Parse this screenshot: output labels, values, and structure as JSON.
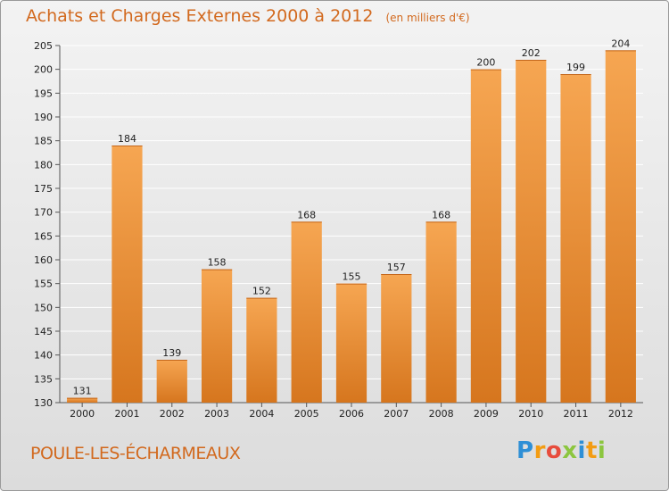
{
  "header": {
    "title": "Achats et Charges Externes 2000 à 2012",
    "unit": "(en milliers d'€)"
  },
  "footer": {
    "commune": "POULE-LES-ÉCHARMEAUX",
    "logo": {
      "letters": [
        "P",
        "r",
        "o",
        "x",
        "i",
        "t",
        "i"
      ],
      "colors": [
        "#2e8fd6",
        "#f39c12",
        "#e74c3c",
        "#8cc63f",
        "#2e8fd6",
        "#f39c12",
        "#8cc63f"
      ]
    }
  },
  "colors": {
    "text_accent": "#d2691e",
    "bar_top": "#f6a652",
    "bar_bottom": "#d6761e",
    "grid": "#ffffff"
  },
  "chart_data": {
    "type": "bar",
    "categories": [
      "2000",
      "2001",
      "2002",
      "2003",
      "2004",
      "2005",
      "2006",
      "2007",
      "2008",
      "2009",
      "2010",
      "2011",
      "2012"
    ],
    "values": [
      131,
      184,
      139,
      158,
      152,
      168,
      155,
      157,
      168,
      200,
      202,
      199,
      204
    ],
    "ylim": [
      130,
      205
    ],
    "yticks": [
      130,
      135,
      140,
      145,
      150,
      155,
      160,
      165,
      170,
      175,
      180,
      185,
      190,
      195,
      200,
      205
    ],
    "grid": true,
    "legend": "none"
  }
}
